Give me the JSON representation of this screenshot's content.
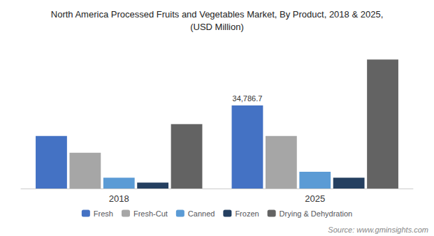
{
  "chart_data": {
    "type": "bar",
    "title": "North America Processed Fruits and Vegetables Market, By Product, 2018 & 2025,\n(USD Million)",
    "categories": [
      "2018",
      "2025"
    ],
    "series": [
      {
        "name": "Fresh",
        "color": "#4472c4",
        "values": [
          22000,
          34786.7
        ],
        "value_labels": [
          null,
          "34,786.7"
        ]
      },
      {
        "name": "Fresh-Cut",
        "color": "#a6a6a6",
        "values": [
          15000,
          22000
        ]
      },
      {
        "name": "Canned",
        "color": "#5b9bd5",
        "values": [
          4500,
          7000
        ]
      },
      {
        "name": "Frozen",
        "color": "#243f60",
        "values": [
          2500,
          4500
        ]
      },
      {
        "name": "Drying & Dehydration",
        "color": "#636363",
        "values": [
          27000,
          54000
        ]
      }
    ],
    "ylim": [
      0,
      62000
    ],
    "tick_labels": "x",
    "grid": false,
    "legend": "bottom",
    "annotations": [
      "Source: www.gminsights.com"
    ]
  }
}
